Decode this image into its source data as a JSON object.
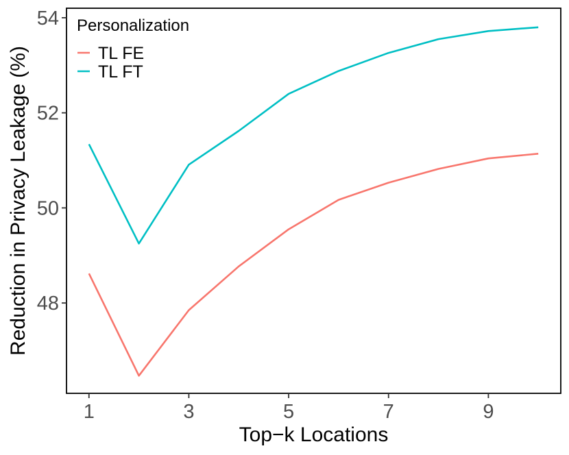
{
  "chart_data": {
    "type": "line",
    "xlabel": "Top−k Locations",
    "ylabel": "Reduction in Privacy Leakage (%)",
    "x": [
      1,
      2,
      3,
      4,
      5,
      6,
      7,
      8,
      9,
      10
    ],
    "xlim": [
      0.55,
      10.45
    ],
    "ylim": [
      46.1,
      54.2
    ],
    "x_ticks": [
      1,
      3,
      5,
      7,
      9
    ],
    "y_ticks": [
      48,
      50,
      52,
      54
    ],
    "x_tick_labels": [
      "1",
      "3",
      "5",
      "7",
      "9"
    ],
    "y_tick_labels": [
      "48",
      "50",
      "52",
      "54"
    ],
    "grid": false,
    "legend": {
      "title": "Personalization",
      "position": "top-left"
    },
    "series": [
      {
        "name": "TL FE",
        "color": "#F8766D",
        "values": [
          48.62,
          46.47,
          47.85,
          48.77,
          49.55,
          50.17,
          50.53,
          50.82,
          51.04,
          51.14
        ]
      },
      {
        "name": "TL FT",
        "color": "#00BFC4",
        "values": [
          51.34,
          49.25,
          50.91,
          51.62,
          52.4,
          52.88,
          53.26,
          53.55,
          53.72,
          53.8
        ]
      }
    ]
  }
}
